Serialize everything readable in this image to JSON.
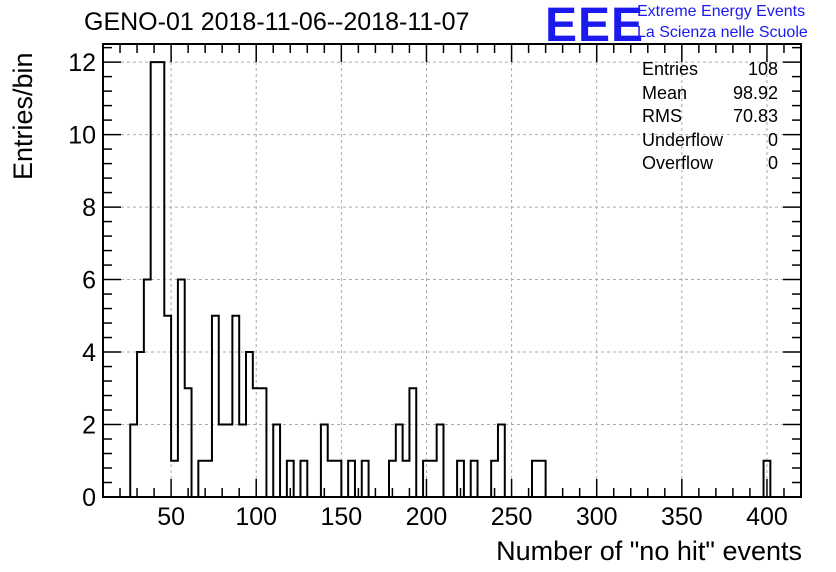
{
  "title": "GENO-01 2018-11-06--2018-11-07",
  "logo": {
    "mark": "EEE",
    "line1": "Extreme Energy Events",
    "line2": "La Scienza nelle Scuole",
    "color": "#1a1aee"
  },
  "stats": [
    {
      "label": "Entries",
      "value": "108"
    },
    {
      "label": "Mean",
      "value": "98.92"
    },
    {
      "label": "RMS",
      "value": "70.83"
    },
    {
      "label": "Underflow",
      "value": "0"
    },
    {
      "label": "Overflow",
      "value": "0"
    }
  ],
  "chart_data": {
    "type": "bar",
    "style": "step-histogram",
    "title": "GENO-01 2018-11-06--2018-11-07",
    "xlabel": "Number of \"no hit\" events",
    "ylabel": "Entries/bin",
    "xlim": [
      10,
      420
    ],
    "ylim": [
      0,
      12.5
    ],
    "bin_width": 4,
    "x_ticks": [
      50,
      100,
      150,
      200,
      250,
      300,
      350,
      400
    ],
    "y_ticks": [
      0,
      2,
      4,
      6,
      8,
      10,
      12
    ],
    "grid": true,
    "bins": [
      {
        "x": 26,
        "y": 2
      },
      {
        "x": 30,
        "y": 4
      },
      {
        "x": 34,
        "y": 6
      },
      {
        "x": 38,
        "y": 12
      },
      {
        "x": 42,
        "y": 12
      },
      {
        "x": 46,
        "y": 5
      },
      {
        "x": 50,
        "y": 1
      },
      {
        "x": 54,
        "y": 6
      },
      {
        "x": 58,
        "y": 3
      },
      {
        "x": 62,
        "y": 0
      },
      {
        "x": 66,
        "y": 1
      },
      {
        "x": 70,
        "y": 1
      },
      {
        "x": 74,
        "y": 5
      },
      {
        "x": 78,
        "y": 2
      },
      {
        "x": 82,
        "y": 2
      },
      {
        "x": 86,
        "y": 5
      },
      {
        "x": 90,
        "y": 2
      },
      {
        "x": 94,
        "y": 4
      },
      {
        "x": 98,
        "y": 3
      },
      {
        "x": 102,
        "y": 3
      },
      {
        "x": 106,
        "y": 0
      },
      {
        "x": 110,
        "y": 2
      },
      {
        "x": 114,
        "y": 0
      },
      {
        "x": 118,
        "y": 1
      },
      {
        "x": 122,
        "y": 0
      },
      {
        "x": 126,
        "y": 1
      },
      {
        "x": 130,
        "y": 0
      },
      {
        "x": 134,
        "y": 0
      },
      {
        "x": 138,
        "y": 2
      },
      {
        "x": 142,
        "y": 1
      },
      {
        "x": 146,
        "y": 1
      },
      {
        "x": 150,
        "y": 0
      },
      {
        "x": 154,
        "y": 1
      },
      {
        "x": 158,
        "y": 0
      },
      {
        "x": 162,
        "y": 1
      },
      {
        "x": 166,
        "y": 0
      },
      {
        "x": 170,
        "y": 0
      },
      {
        "x": 174,
        "y": 0
      },
      {
        "x": 178,
        "y": 1
      },
      {
        "x": 182,
        "y": 2
      },
      {
        "x": 186,
        "y": 1
      },
      {
        "x": 190,
        "y": 3
      },
      {
        "x": 194,
        "y": 0
      },
      {
        "x": 198,
        "y": 1
      },
      {
        "x": 202,
        "y": 1
      },
      {
        "x": 206,
        "y": 2
      },
      {
        "x": 210,
        "y": 0
      },
      {
        "x": 214,
        "y": 0
      },
      {
        "x": 218,
        "y": 1
      },
      {
        "x": 222,
        "y": 0
      },
      {
        "x": 226,
        "y": 1
      },
      {
        "x": 230,
        "y": 0
      },
      {
        "x": 234,
        "y": 0
      },
      {
        "x": 238,
        "y": 1
      },
      {
        "x": 242,
        "y": 2
      },
      {
        "x": 246,
        "y": 0
      },
      {
        "x": 250,
        "y": 0
      },
      {
        "x": 254,
        "y": 0
      },
      {
        "x": 258,
        "y": 0
      },
      {
        "x": 262,
        "y": 1
      },
      {
        "x": 266,
        "y": 1
      },
      {
        "x": 270,
        "y": 0
      },
      {
        "x": 398,
        "y": 1
      }
    ]
  }
}
